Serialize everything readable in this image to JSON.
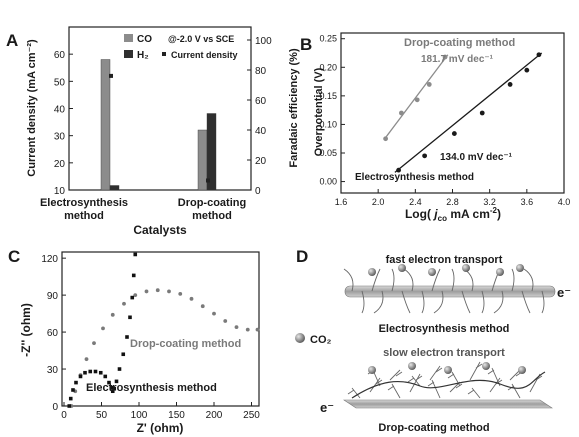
{
  "chart_data": [
    {
      "panel": "A",
      "type": "bar",
      "xlabel": "Catalysts",
      "ylabel": "Current density (mA cm⁻²)",
      "y2label": "Faradaic efficiency (%)",
      "ylim": [
        10,
        70
      ],
      "y2lim": [
        0,
        100
      ],
      "yticks": [
        10,
        20,
        30,
        40,
        50,
        60
      ],
      "y2ticks": [
        0,
        20,
        40,
        60,
        80,
        100
      ],
      "annotation": "@-2.0 V vs SCE",
      "categories": [
        "Electrosynthesis method",
        "Drop-coating method"
      ],
      "legend": [
        "CO",
        "H₂",
        "Current density"
      ],
      "faradaic_efficiency": [
        {
          "name": "CO",
          "color": "#8c8c8c",
          "values": [
            87,
            40
          ]
        },
        {
          "name": "H₂",
          "color": "#2f2f2f",
          "values": [
            3,
            51
          ]
        }
      ],
      "current_density": {
        "name": "Current density",
        "values": [
          52,
          13.5
        ]
      }
    },
    {
      "panel": "B",
      "type": "scatter",
      "xlabel": "Log( j_CO mA cm⁻²)",
      "ylabel": "Overpotential (V)",
      "xlim": [
        1.6,
        4.0
      ],
      "ylim": [
        -0.02,
        0.26
      ],
      "xticks": [
        "1.6",
        "2.0",
        "2.4",
        "2.8",
        "3.2",
        "3.6",
        "4.0"
      ],
      "yticks": [
        "0.00",
        "0.05",
        "0.10",
        "0.15",
        "0.20",
        "0.25"
      ],
      "series": [
        {
          "name": "Drop-coating method",
          "slope_label": "181.7 mV dec⁻¹",
          "color": "#8c8c8c",
          "x": [
            2.08,
            2.25,
            2.42,
            2.55,
            2.72
          ],
          "y": [
            0.075,
            0.12,
            0.143,
            0.17,
            0.218
          ],
          "fit": [
            [
              2.08,
              0.077
            ],
            [
              2.75,
              0.222
            ]
          ]
        },
        {
          "name": "Electrosynthesis method",
          "slope_label": "134.0 mV dec⁻¹",
          "color": "#1a1a1a",
          "x": [
            2.22,
            2.5,
            2.82,
            3.12,
            3.42,
            3.6,
            3.73
          ],
          "y": [
            0.02,
            0.045,
            0.084,
            0.12,
            0.17,
            0.195,
            0.222
          ],
          "fit": [
            [
              2.18,
              0.016
            ],
            [
              3.76,
              0.225
            ]
          ]
        }
      ]
    },
    {
      "panel": "C",
      "type": "scatter",
      "xlabel": "Z' (ohm)",
      "ylabel": "-Z'' (ohm)",
      "xlim": [
        0,
        260
      ],
      "ylim": [
        0,
        125
      ],
      "xticks": [
        0,
        50,
        100,
        150,
        200,
        250
      ],
      "yticks": [
        0,
        30,
        60,
        90,
        120
      ],
      "series": [
        {
          "name": "Drop-coating method",
          "color": "#7a7a7a",
          "x": [
            10,
            15,
            22,
            30,
            40,
            52,
            65,
            80,
            95,
            110,
            125,
            140,
            155,
            170,
            185,
            200,
            215,
            230,
            245,
            258
          ],
          "y": [
            0,
            12,
            25,
            38,
            51,
            63,
            74,
            83,
            90,
            93,
            94,
            93,
            91,
            87,
            81,
            75,
            69,
            64,
            62,
            62
          ]
        },
        {
          "name": "Electrosynthesis method",
          "color": "#111111",
          "x": [
            7,
            9,
            12,
            16,
            22,
            28,
            35,
            42,
            49,
            55,
            60,
            63,
            65,
            67,
            70,
            74,
            79,
            84,
            88,
            91,
            93,
            95
          ],
          "y": [
            0,
            6,
            13,
            19,
            24,
            27,
            28,
            28,
            27,
            24,
            19,
            15,
            12,
            14,
            20,
            30,
            42,
            56,
            72,
            88,
            106,
            123
          ]
        }
      ]
    },
    {
      "panel": "D",
      "type": "diagram",
      "top_caption": "fast electron transport",
      "top_label": "Electrosynthesis method",
      "bottom_caption": "slow electron transport",
      "bottom_label": "Drop-coating method",
      "electron_label": "e⁻",
      "co2_label": "CO₂"
    }
  ],
  "panel_letters": [
    "A",
    "B",
    "C",
    "D"
  ],
  "colors": {
    "co_bar": "#8c8c8c",
    "h2_bar": "#2f2f2f",
    "drop": "#8c8c8c",
    "electro": "#1a1a1a"
  }
}
